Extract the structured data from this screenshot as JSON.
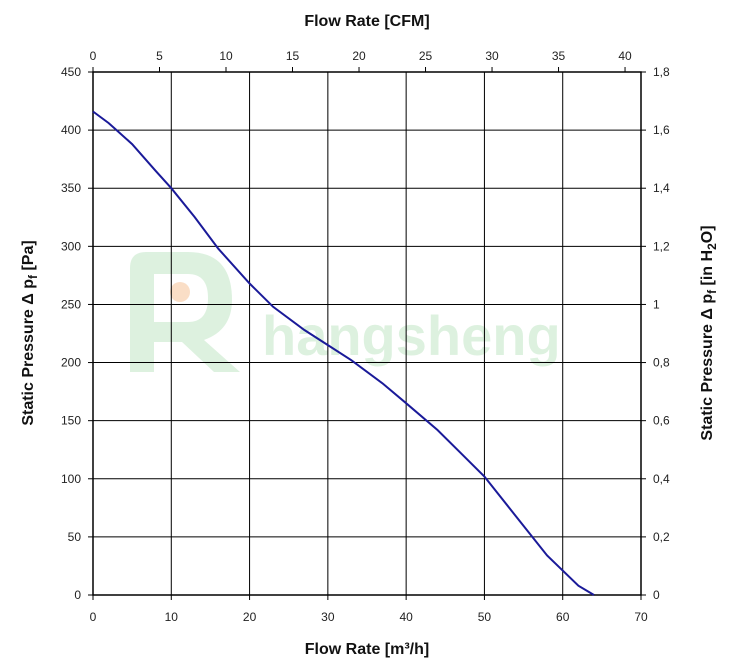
{
  "chart_data": {
    "type": "line",
    "xlabel_bottom": "Flow Rate [m³/h]",
    "xlabel_top": "Flow Rate [CFM]",
    "ylabel_left": "Static Pressure Δ p",
    "ylabel_left_subscript": "f",
    "ylabel_left_unit": " [Pa]",
    "ylabel_right": "Static Pressure Δ p",
    "ylabel_right_subscript": "f",
    "ylabel_right_unit_open": " [in H",
    "ylabel_right_unit_sub": "2",
    "ylabel_right_unit_close": "O]",
    "xlim_bottom": [
      0,
      70
    ],
    "xticks_bottom": [
      "0",
      "10",
      "20",
      "30",
      "40",
      "50",
      "60",
      "70"
    ],
    "xlim_top": [
      0,
      41.2
    ],
    "xticks_top": [
      "0",
      "5",
      "10",
      "15",
      "20",
      "25",
      "30",
      "35",
      "40"
    ],
    "ylim_left": [
      0,
      450
    ],
    "yticks_left": [
      "0",
      "50",
      "100",
      "150",
      "200",
      "250",
      "300",
      "350",
      "400",
      "450"
    ],
    "ylim_right": [
      0,
      1.8
    ],
    "yticks_right": [
      "0",
      "0,2",
      "0,4",
      "0,6",
      "0,8",
      "1",
      "1,2",
      "1,4",
      "1,6",
      "1,8"
    ],
    "grid": true,
    "series": [
      {
        "color": "#1a1a99",
        "x": [
          0,
          2,
          5,
          8,
          10,
          13,
          16,
          20,
          23,
          27,
          30,
          33,
          37,
          40,
          44,
          47,
          50,
          54,
          58,
          62,
          64
        ],
        "y": [
          416,
          406,
          388,
          365,
          350,
          325,
          298,
          268,
          248,
          228,
          215,
          202,
          182,
          165,
          142,
          122,
          102,
          68,
          34,
          8,
          0
        ]
      }
    ]
  },
  "watermark": {
    "text": "hangsheng",
    "color": "#9fd8a6",
    "accent": "#f3a25e"
  }
}
